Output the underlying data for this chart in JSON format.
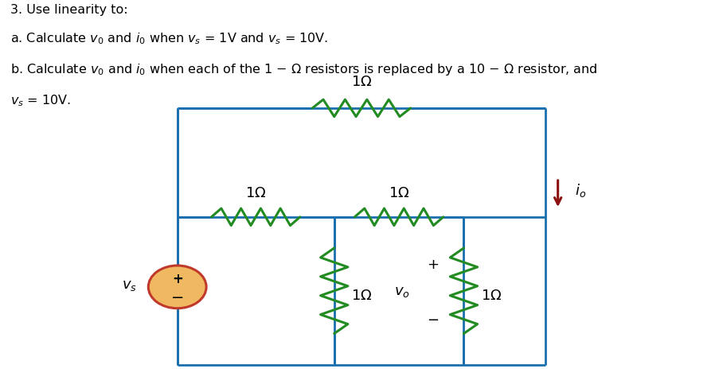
{
  "wire_color": "#1a6faf",
  "resistor_color": "#228B22",
  "source_fill": "#f0b860",
  "source_edge": "#c0392b",
  "arrow_color": "#8B1010",
  "bg_color": "#ffffff",
  "CL": 0.26,
  "CR": 0.8,
  "CT": 0.72,
  "CB": 0.06,
  "MID": 0.44,
  "MX1": 0.49,
  "MX2": 0.68
}
